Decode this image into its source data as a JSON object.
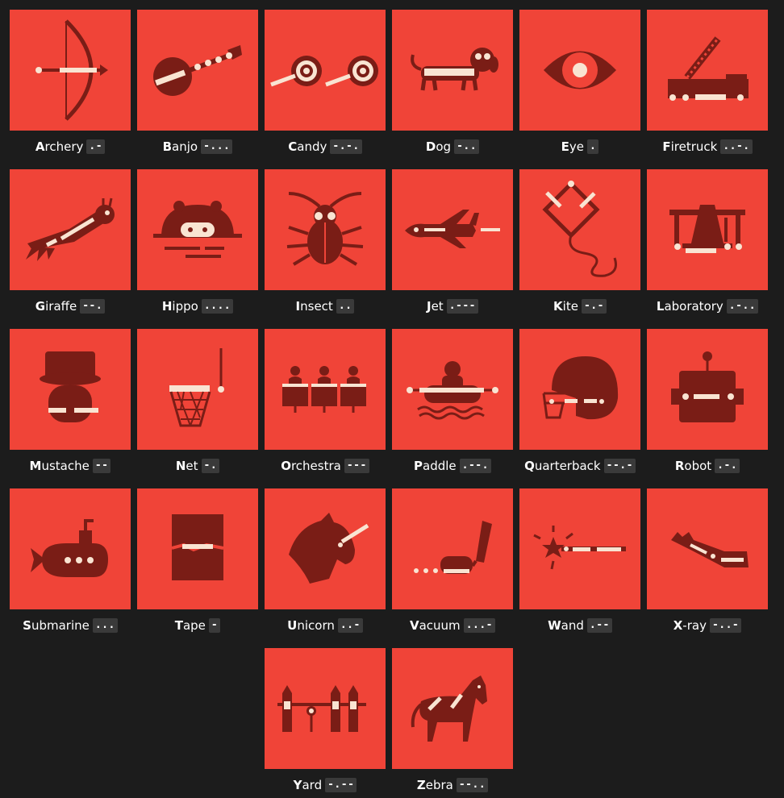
{
  "palette": {
    "background": "#1c1c1c",
    "tile": "#f04438",
    "ink": "#7a1d16",
    "highlight": "#f9e4d2",
    "code_bg": "#3a3a3a"
  },
  "items": [
    {
      "initial": "A",
      "rest": "rchery",
      "code": ".-",
      "icon": "archery-bow-icon"
    },
    {
      "initial": "B",
      "rest": "anjo",
      "code": "-...",
      "icon": "banjo-icon"
    },
    {
      "initial": "C",
      "rest": "andy",
      "code": "-.-.",
      "icon": "candy-icon"
    },
    {
      "initial": "D",
      "rest": "og",
      "code": "-..",
      "icon": "dog-icon"
    },
    {
      "initial": "E",
      "rest": "ye",
      "code": ".",
      "icon": "eye-icon"
    },
    {
      "initial": "F",
      "rest": "iretruck",
      "code": "..-.",
      "icon": "firetruck-icon"
    },
    {
      "initial": "G",
      "rest": "iraffe",
      "code": "--.",
      "icon": "giraffe-icon"
    },
    {
      "initial": "H",
      "rest": "ippo",
      "code": "....",
      "icon": "hippo-icon"
    },
    {
      "initial": "I",
      "rest": "nsect",
      "code": "..",
      "icon": "insect-icon"
    },
    {
      "initial": "J",
      "rest": "et",
      "code": ".---",
      "icon": "jet-icon"
    },
    {
      "initial": "K",
      "rest": "ite",
      "code": "-.-",
      "icon": "kite-icon"
    },
    {
      "initial": "L",
      "rest": "aboratory",
      "code": ".-..",
      "icon": "laboratory-icon"
    },
    {
      "initial": "M",
      "rest": "ustache",
      "code": "--",
      "icon": "mustache-icon"
    },
    {
      "initial": "N",
      "rest": "et",
      "code": "-.",
      "icon": "net-icon"
    },
    {
      "initial": "O",
      "rest": "rchestra",
      "code": "---",
      "icon": "orchestra-icon"
    },
    {
      "initial": "P",
      "rest": "addle",
      "code": ".--.",
      "icon": "paddle-icon"
    },
    {
      "initial": "Q",
      "rest": "uarterback",
      "code": "--.-",
      "icon": "quarterback-helmet-icon"
    },
    {
      "initial": "R",
      "rest": "obot",
      "code": ".-.",
      "icon": "robot-icon"
    },
    {
      "initial": "S",
      "rest": "ubmarine",
      "code": "...",
      "icon": "submarine-icon"
    },
    {
      "initial": "T",
      "rest": "ape",
      "code": "-",
      "icon": "tape-icon"
    },
    {
      "initial": "U",
      "rest": "nicorn",
      "code": "..-",
      "icon": "unicorn-icon"
    },
    {
      "initial": "V",
      "rest": "acuum",
      "code": "...-",
      "icon": "vacuum-icon"
    },
    {
      "initial": "W",
      "rest": "and",
      "code": ".--",
      "icon": "wand-icon"
    },
    {
      "initial": "X",
      "rest": "-ray",
      "code": "-..-",
      "icon": "x-ray-icon"
    },
    {
      "initial": "Y",
      "rest": "ard",
      "code": "-.--",
      "icon": "yard-icon"
    },
    {
      "initial": "Z",
      "rest": "ebra",
      "code": "--..",
      "icon": "zebra-icon"
    }
  ]
}
